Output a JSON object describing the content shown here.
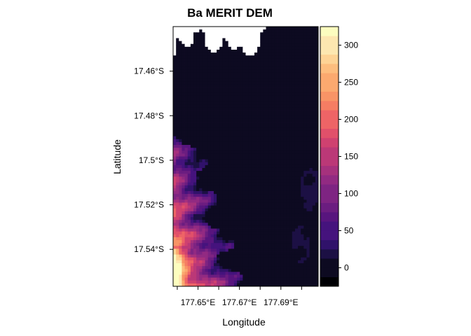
{
  "chart_data": {
    "type": "heatmap",
    "title": "Ba MERIT DEM",
    "xlabel": "Longitude",
    "ylabel": "Latitude",
    "x_range_deg_east": [
      177.638,
      177.708
    ],
    "y_range_deg_north": [
      -17.5566,
      -17.44
    ],
    "x_ticks": [
      {
        "value": 177.64,
        "label": ""
      },
      {
        "value": 177.65,
        "label": "177.65°E"
      },
      {
        "value": 177.66,
        "label": ""
      },
      {
        "value": 177.67,
        "label": "177.67°E"
      },
      {
        "value": 177.68,
        "label": ""
      },
      {
        "value": 177.69,
        "label": "177.69°E"
      },
      {
        "value": 177.7,
        "label": ""
      }
    ],
    "y_ticks": [
      {
        "value": -17.46,
        "label": "17.46°S"
      },
      {
        "value": -17.48,
        "label": "17.48°S"
      },
      {
        "value": -17.5,
        "label": "17.5°S"
      },
      {
        "value": -17.52,
        "label": "17.52°S"
      },
      {
        "value": -17.54,
        "label": "17.54°S"
      }
    ],
    "legend": {
      "placement": "right",
      "ticks": [
        0,
        50,
        100,
        150,
        200,
        250,
        300
      ],
      "breaks": [
        -25,
        -12.5,
        0,
        12.5,
        25,
        37.5,
        50,
        62.5,
        75,
        87.5,
        100,
        112.5,
        125,
        137.5,
        150,
        162.5,
        175,
        187.5,
        200,
        212.5,
        225,
        237.5,
        250,
        262.5,
        275,
        287.5,
        300,
        312.5,
        325
      ],
      "colors": [
        "#000004",
        "#0d0a21",
        "#1c1044",
        "#30126a",
        "#45137d",
        "#58157e",
        "#6b1d80",
        "#7e2482",
        "#922a82",
        "#a6317d",
        "#bb3877",
        "#cf4170",
        "#e1506a",
        "#ee6466",
        "#f57d63",
        "#f89466",
        "#fba96f",
        "#fdbd7e",
        "#fed395",
        "#fde7b0",
        "#fcfdbf"
      ]
    },
    "grid": false,
    "nodata_color": "#ffffff",
    "data_description_omitted": true
  }
}
